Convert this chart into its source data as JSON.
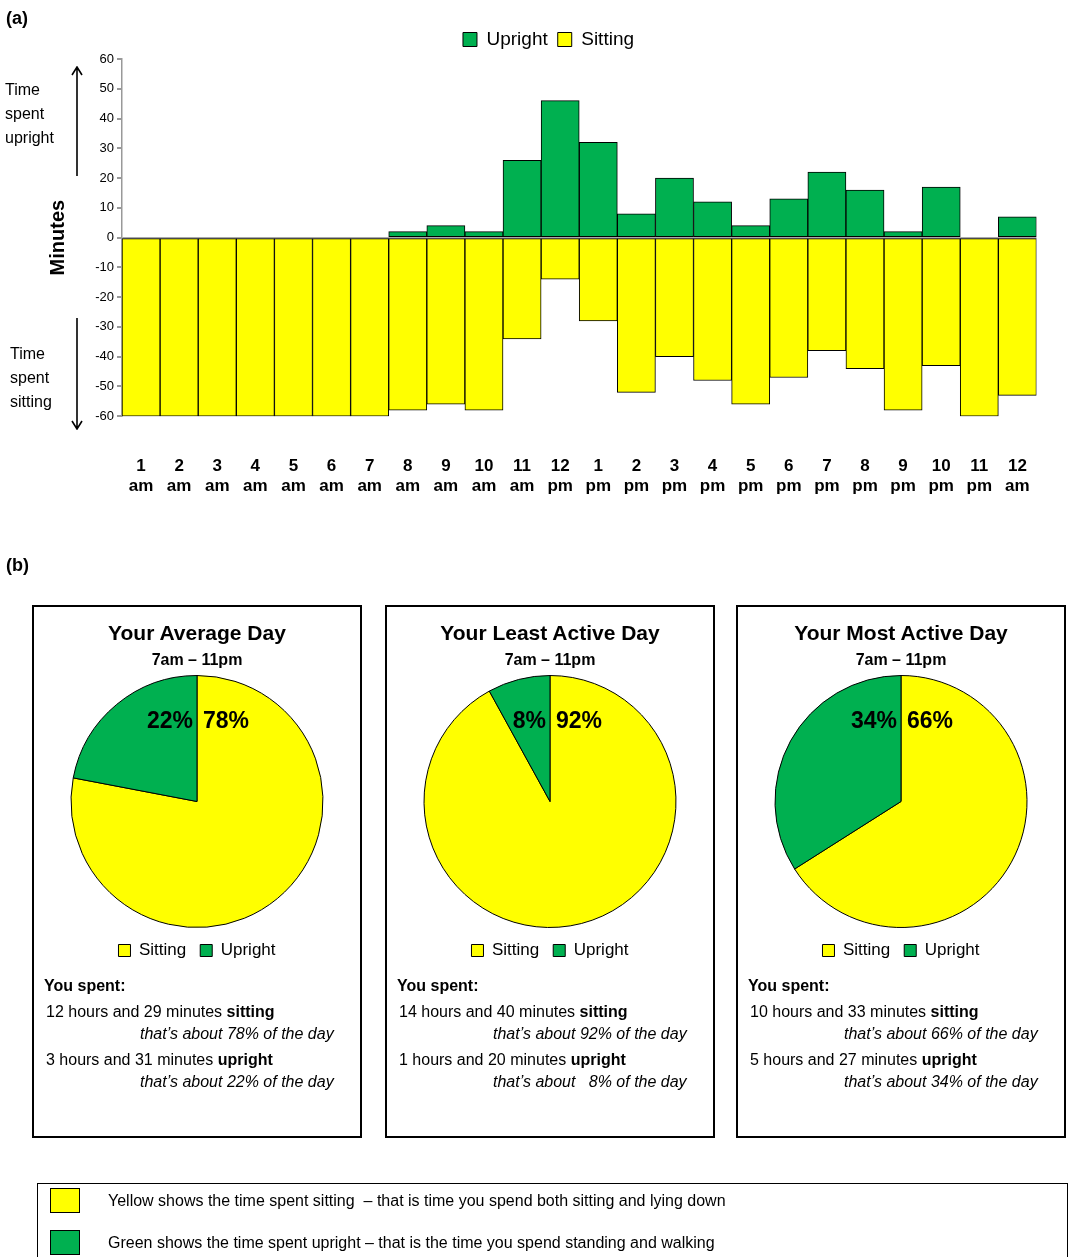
{
  "chart_data": [
    {
      "type": "bar",
      "stacked": true,
      "categories": [
        "1 am",
        "2 am",
        "3 am",
        "4 am",
        "5 am",
        "6 am",
        "7 am",
        "8 am",
        "9 am",
        "10 am",
        "11 am",
        "12 pm",
        "1 pm",
        "2 pm",
        "3 pm",
        "4 pm",
        "5 pm",
        "6 pm",
        "7 pm",
        "8 pm",
        "9 pm",
        "10 pm",
        "11 pm",
        "12 am"
      ],
      "ylabel": "Minutes",
      "ylim": [
        -60,
        60
      ],
      "yticks": [
        -60,
        -50,
        -40,
        -30,
        -20,
        -10,
        0,
        10,
        20,
        30,
        40,
        50,
        60
      ],
      "legend": "top",
      "series": [
        {
          "name": "Upright",
          "color": "#00b050",
          "values": [
            0,
            0,
            0,
            0,
            0,
            0,
            0,
            2,
            4,
            2,
            26,
            46,
            32,
            8,
            20,
            12,
            4,
            13,
            22,
            16,
            2,
            17,
            0,
            7
          ]
        },
        {
          "name": "Sitting",
          "color": "#ffff00",
          "values": [
            -60,
            -60,
            -60,
            -60,
            -60,
            -60,
            -60,
            -58,
            -56,
            -58,
            -34,
            -14,
            -28,
            -52,
            -40,
            -48,
            -56,
            -47,
            -38,
            -44,
            -58,
            -43,
            -60,
            -53
          ]
        }
      ],
      "annotations": [
        "(a)",
        "Time spent upright",
        "Time spent sitting"
      ]
    },
    {
      "type": "pie",
      "title": "Your Average Day",
      "subtitle": "7am – 11pm",
      "categories": [
        "Sitting",
        "Upright"
      ],
      "values": [
        78,
        22
      ],
      "colors": [
        "#ffff00",
        "#00b050"
      ],
      "value_labels": [
        "78%",
        "22%"
      ],
      "legend": "bottom",
      "annotations": [
        "(b)",
        "You spent:",
        "12 hours and 29 minutes sitting",
        "that’s about 78% of the day",
        "3 hours and 31 minutes upright",
        "that’s about 22% of the day"
      ]
    },
    {
      "type": "pie",
      "title": "Your Least Active Day",
      "subtitle": "7am – 11pm",
      "categories": [
        "Sitting",
        "Upright"
      ],
      "values": [
        92,
        8
      ],
      "colors": [
        "#ffff00",
        "#00b050"
      ],
      "value_labels": [
        "92%",
        "8%"
      ],
      "legend": "bottom",
      "annotations": [
        "You spent:",
        "14 hours and 40 minutes sitting",
        "that’s about 92% of the day",
        "1 hours and 20 minutes upright",
        "that’s about   8% of the day"
      ]
    },
    {
      "type": "pie",
      "title": "Your Most Active Day",
      "subtitle": "7am – 11pm",
      "categories": [
        "Sitting",
        "Upright"
      ],
      "values": [
        66,
        34
      ],
      "colors": [
        "#ffff00",
        "#00b050"
      ],
      "value_labels": [
        "66%",
        "34%"
      ],
      "legend": "bottom",
      "annotations": [
        "You spent:",
        "10 hours and 33 minutes sitting",
        "that’s about 66% of the day",
        "5 hours and 27 minutes upright",
        "that’s about 34% of the day"
      ]
    },
    {
      "type": "other",
      "annotations": [
        "Yellow shows the time spent sitting  – that is time you spend both sitting and lying down",
        "Green shows the time spent upright – that is the time you spend standing and walking"
      ]
    }
  ]
}
